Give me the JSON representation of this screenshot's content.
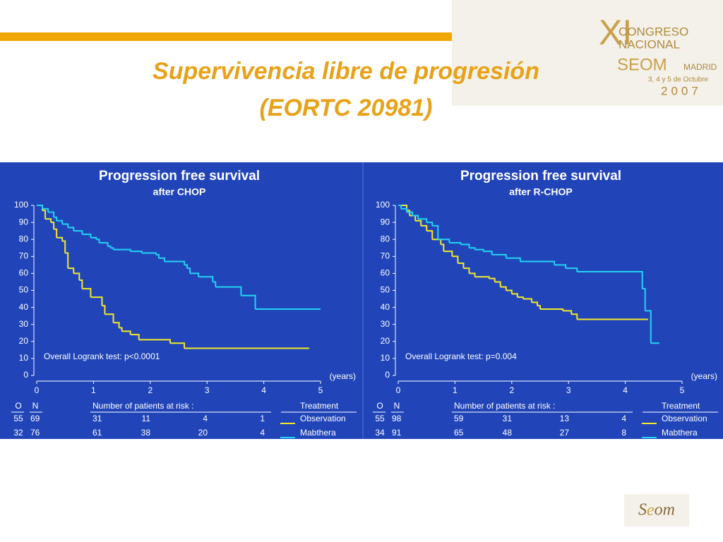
{
  "slide": {
    "title_lines": [
      "Supervivencia libre de progresión",
      "(EORTC 20981)"
    ],
    "logo": {
      "numeral": "XI",
      "line1": "CONGRESO",
      "line2": "NACIONAL",
      "brand": "SEOM",
      "city": "MADRID",
      "dates": "3, 4 y 5 de Octubre",
      "year": "2007"
    }
  },
  "chart_data": [
    {
      "type": "line",
      "step": true,
      "title": "Progression free survival",
      "subtitle": "after CHOP",
      "x_label": "(years)",
      "annotation": "Overall Logrank test: p<0.0001",
      "xlim": [
        0,
        5
      ],
      "xticks": [
        0,
        1,
        2,
        3,
        4,
        5
      ],
      "ylim": [
        0,
        100
      ],
      "yticks": [
        0,
        10,
        20,
        30,
        40,
        50,
        60,
        70,
        80,
        90,
        100
      ],
      "series": [
        {
          "name": "Observation",
          "color": "#f2e82a",
          "x": [
            0,
            0.1,
            0.15,
            0.25,
            0.3,
            0.35,
            0.45,
            0.5,
            0.55,
            0.65,
            0.75,
            0.8,
            0.95,
            1.15,
            1.2,
            1.35,
            1.45,
            1.5,
            1.65,
            1.8,
            2.35,
            2.6,
            4.8
          ],
          "values": [
            100,
            97,
            92,
            90,
            86,
            81,
            79,
            72,
            63,
            60,
            56,
            51,
            46,
            41,
            36,
            31,
            28,
            26,
            24,
            21,
            19,
            16,
            16
          ]
        },
        {
          "name": "Mabthera",
          "color": "#22d3f2",
          "x": [
            0,
            0.1,
            0.2,
            0.3,
            0.35,
            0.45,
            0.55,
            0.65,
            0.8,
            0.95,
            1.05,
            1.1,
            1.25,
            1.3,
            1.35,
            1.65,
            1.85,
            2.1,
            2.15,
            2.25,
            2.6,
            2.65,
            2.7,
            2.85,
            3.1,
            3.15,
            3.6,
            3.85,
            5.0
          ],
          "values": [
            100,
            98,
            96,
            93,
            91,
            89,
            87,
            85,
            83,
            81,
            80,
            78,
            76,
            75,
            74,
            73,
            72,
            71,
            69,
            67,
            65,
            63,
            60,
            58,
            55,
            52,
            47,
            39,
            39
          ]
        }
      ],
      "risk_table": {
        "headers": [
          "O",
          "N",
          "Number of patients at risk :",
          "Treatment"
        ],
        "rows": [
          {
            "o": 55,
            "n": 69,
            "at_risk": [
              31,
              11,
              4,
              1
            ]
          },
          {
            "o": 32,
            "n": 76,
            "at_risk": [
              61,
              38,
              20,
              4
            ]
          }
        ]
      }
    },
    {
      "type": "line",
      "step": true,
      "title": "Progression free survival",
      "subtitle": "after R-CHOP",
      "x_label": "(years)",
      "annotation": "Overall Logrank test: p=0.004",
      "xlim": [
        0,
        5
      ],
      "xticks": [
        0,
        1,
        2,
        3,
        4,
        5
      ],
      "ylim": [
        0,
        100
      ],
      "yticks": [
        0,
        10,
        20,
        30,
        40,
        50,
        60,
        70,
        80,
        90,
        100
      ],
      "series": [
        {
          "name": "Observation",
          "color": "#f2e82a",
          "x": [
            0,
            0.15,
            0.2,
            0.3,
            0.4,
            0.5,
            0.6,
            0.75,
            0.8,
            0.95,
            1.05,
            1.15,
            1.25,
            1.35,
            1.6,
            1.7,
            1.8,
            1.9,
            2.0,
            2.1,
            2.2,
            2.35,
            2.45,
            2.5,
            2.9,
            3.05,
            3.15,
            4.4
          ],
          "values": [
            100,
            97,
            94,
            91,
            88,
            85,
            80,
            77,
            73,
            70,
            66,
            63,
            60,
            58,
            57,
            55,
            52,
            50,
            48,
            46,
            45,
            43,
            41,
            39,
            38,
            36,
            33,
            33
          ]
        },
        {
          "name": "Mabthera",
          "color": "#22d3f2",
          "x": [
            0,
            0.05,
            0.15,
            0.25,
            0.35,
            0.5,
            0.6,
            0.7,
            0.9,
            1.1,
            1.25,
            1.35,
            1.5,
            1.65,
            1.9,
            2.15,
            2.75,
            2.95,
            3.15,
            4.3,
            4.35,
            4.45,
            4.6
          ],
          "values": [
            100,
            98,
            96,
            94,
            92,
            90,
            88,
            80,
            78,
            77,
            75,
            74,
            73,
            71,
            69,
            67,
            65,
            63,
            61,
            51,
            38,
            19,
            19
          ]
        }
      ],
      "risk_table": {
        "headers": [
          "O",
          "N",
          "Number of patients at risk :",
          "Treatment"
        ],
        "rows": [
          {
            "o": 55,
            "n": 98,
            "at_risk": [
              59,
              31,
              13,
              4
            ]
          },
          {
            "o": 34,
            "n": 91,
            "at_risk": [
              65,
              48,
              27,
              8
            ]
          }
        ]
      }
    }
  ]
}
